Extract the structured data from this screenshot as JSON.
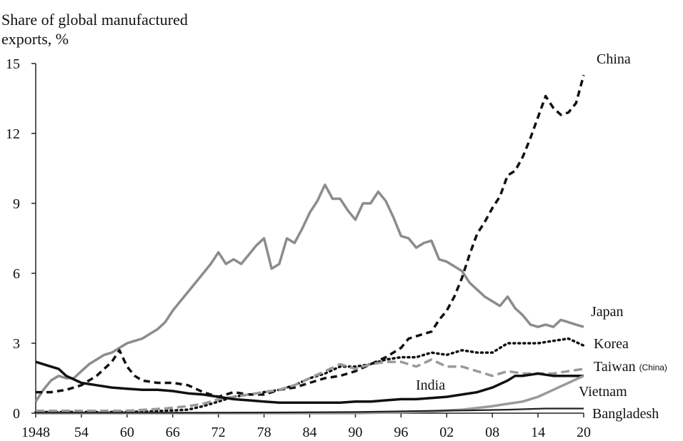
{
  "chart_data": {
    "type": "line",
    "ylabel_line1": "Share of global manufactured",
    "ylabel_line2": "exports, %",
    "xlim": [
      1948,
      2020
    ],
    "ylim": [
      0,
      15
    ],
    "x_ticks": [
      {
        "value": 1948,
        "label": "1948"
      },
      {
        "value": 1954,
        "label": "54"
      },
      {
        "value": 1960,
        "label": "60"
      },
      {
        "value": 1966,
        "label": "66"
      },
      {
        "value": 1972,
        "label": "72"
      },
      {
        "value": 1978,
        "label": "78"
      },
      {
        "value": 1984,
        "label": "84"
      },
      {
        "value": 1990,
        "label": "90"
      },
      {
        "value": 1996,
        "label": "96"
      },
      {
        "value": 2002,
        "label": "02"
      },
      {
        "value": 2008,
        "label": "08"
      },
      {
        "value": 2014,
        "label": "14"
      },
      {
        "value": 2020,
        "label": "20"
      }
    ],
    "y_ticks": [
      {
        "value": 0,
        "label": "0"
      },
      {
        "value": 3,
        "label": "3"
      },
      {
        "value": 6,
        "label": "6"
      },
      {
        "value": 9,
        "label": "9"
      },
      {
        "value": 12,
        "label": "12"
      },
      {
        "value": 15,
        "label": "15"
      }
    ],
    "series": [
      {
        "name": "Japan",
        "label": "Japan",
        "color": "#8c8c8c",
        "dash": "solid",
        "width": 3.5,
        "points": [
          [
            1948,
            0.5
          ],
          [
            1949,
            1.0
          ],
          [
            1950,
            1.4
          ],
          [
            1951,
            1.6
          ],
          [
            1952,
            1.5
          ],
          [
            1953,
            1.5
          ],
          [
            1954,
            1.8
          ],
          [
            1955,
            2.1
          ],
          [
            1956,
            2.3
          ],
          [
            1957,
            2.5
          ],
          [
            1958,
            2.6
          ],
          [
            1959,
            2.8
          ],
          [
            1960,
            3.0
          ],
          [
            1961,
            3.1
          ],
          [
            1962,
            3.2
          ],
          [
            1963,
            3.4
          ],
          [
            1964,
            3.6
          ],
          [
            1965,
            3.9
          ],
          [
            1966,
            4.4
          ],
          [
            1967,
            4.8
          ],
          [
            1968,
            5.2
          ],
          [
            1969,
            5.6
          ],
          [
            1970,
            6.0
          ],
          [
            1971,
            6.4
          ],
          [
            1972,
            6.9
          ],
          [
            1973,
            6.4
          ],
          [
            1974,
            6.6
          ],
          [
            1975,
            6.4
          ],
          [
            1976,
            6.8
          ],
          [
            1977,
            7.2
          ],
          [
            1978,
            7.5
          ],
          [
            1979,
            6.2
          ],
          [
            1980,
            6.4
          ],
          [
            1981,
            7.5
          ],
          [
            1982,
            7.3
          ],
          [
            1983,
            7.9
          ],
          [
            1984,
            8.6
          ],
          [
            1985,
            9.1
          ],
          [
            1986,
            9.8
          ],
          [
            1987,
            9.2
          ],
          [
            1988,
            9.2
          ],
          [
            1989,
            8.7
          ],
          [
            1990,
            8.3
          ],
          [
            1991,
            9.0
          ],
          [
            1992,
            9.0
          ],
          [
            1993,
            9.5
          ],
          [
            1994,
            9.1
          ],
          [
            1995,
            8.4
          ],
          [
            1996,
            7.6
          ],
          [
            1997,
            7.5
          ],
          [
            1998,
            7.1
          ],
          [
            1999,
            7.3
          ],
          [
            2000,
            7.4
          ],
          [
            2001,
            6.6
          ],
          [
            2002,
            6.5
          ],
          [
            2003,
            6.3
          ],
          [
            2004,
            6.1
          ],
          [
            2005,
            5.6
          ],
          [
            2006,
            5.3
          ],
          [
            2007,
            5.0
          ],
          [
            2008,
            4.8
          ],
          [
            2009,
            4.6
          ],
          [
            2010,
            5.0
          ],
          [
            2011,
            4.5
          ],
          [
            2012,
            4.2
          ],
          [
            2013,
            3.8
          ],
          [
            2014,
            3.7
          ],
          [
            2015,
            3.8
          ],
          [
            2016,
            3.7
          ],
          [
            2017,
            4.0
          ],
          [
            2018,
            3.9
          ],
          [
            2019,
            3.8
          ],
          [
            2020,
            3.7
          ]
        ]
      },
      {
        "name": "China",
        "label": "China",
        "color": "#111111",
        "dash": "9,6",
        "width": 3.5,
        "points": [
          [
            1948,
            0.9
          ],
          [
            1950,
            0.9
          ],
          [
            1952,
            1.0
          ],
          [
            1954,
            1.2
          ],
          [
            1956,
            1.6
          ],
          [
            1958,
            2.2
          ],
          [
            1959,
            2.7
          ],
          [
            1960,
            2.0
          ],
          [
            1961,
            1.6
          ],
          [
            1962,
            1.4
          ],
          [
            1964,
            1.3
          ],
          [
            1966,
            1.3
          ],
          [
            1968,
            1.2
          ],
          [
            1970,
            0.9
          ],
          [
            1972,
            0.7
          ],
          [
            1974,
            0.9
          ],
          [
            1976,
            0.8
          ],
          [
            1978,
            0.8
          ],
          [
            1980,
            1.0
          ],
          [
            1982,
            1.1
          ],
          [
            1984,
            1.3
          ],
          [
            1986,
            1.5
          ],
          [
            1988,
            1.6
          ],
          [
            1990,
            1.8
          ],
          [
            1992,
            2.1
          ],
          [
            1994,
            2.4
          ],
          [
            1996,
            2.8
          ],
          [
            1997,
            3.2
          ],
          [
            1998,
            3.3
          ],
          [
            2000,
            3.5
          ],
          [
            2001,
            4.0
          ],
          [
            2002,
            4.4
          ],
          [
            2003,
            5.0
          ],
          [
            2004,
            5.8
          ],
          [
            2005,
            6.8
          ],
          [
            2006,
            7.7
          ],
          [
            2007,
            8.2
          ],
          [
            2008,
            8.8
          ],
          [
            2009,
            9.3
          ],
          [
            2010,
            10.2
          ],
          [
            2011,
            10.4
          ],
          [
            2012,
            11.0
          ],
          [
            2013,
            11.8
          ],
          [
            2014,
            12.7
          ],
          [
            2015,
            13.6
          ],
          [
            2016,
            13.1
          ],
          [
            2017,
            12.8
          ],
          [
            2018,
            12.9
          ],
          [
            2019,
            13.3
          ],
          [
            2020,
            14.5
          ]
        ]
      },
      {
        "name": "Korea",
        "label": "Korea",
        "color": "#111111",
        "dash": "2,5",
        "width": 3.5,
        "points": [
          [
            1948,
            0.05
          ],
          [
            1955,
            0.05
          ],
          [
            1960,
            0.05
          ],
          [
            1965,
            0.1
          ],
          [
            1968,
            0.15
          ],
          [
            1970,
            0.3
          ],
          [
            1972,
            0.5
          ],
          [
            1974,
            0.7
          ],
          [
            1976,
            0.8
          ],
          [
            1978,
            0.9
          ],
          [
            1980,
            1.0
          ],
          [
            1982,
            1.2
          ],
          [
            1984,
            1.5
          ],
          [
            1986,
            1.7
          ],
          [
            1988,
            2.0
          ],
          [
            1990,
            2.0
          ],
          [
            1992,
            2.1
          ],
          [
            1994,
            2.3
          ],
          [
            1996,
            2.4
          ],
          [
            1998,
            2.4
          ],
          [
            2000,
            2.6
          ],
          [
            2002,
            2.5
          ],
          [
            2004,
            2.7
          ],
          [
            2006,
            2.6
          ],
          [
            2008,
            2.6
          ],
          [
            2010,
            3.0
          ],
          [
            2012,
            3.0
          ],
          [
            2014,
            3.0
          ],
          [
            2016,
            3.1
          ],
          [
            2018,
            3.2
          ],
          [
            2020,
            2.9
          ]
        ]
      },
      {
        "name": "Taiwan (China)",
        "label": "Taiwan",
        "label_suffix": "(China)",
        "color": "#999999",
        "dash": "12,6",
        "width": 3.5,
        "points": [
          [
            1948,
            0.1
          ],
          [
            1955,
            0.1
          ],
          [
            1960,
            0.1
          ],
          [
            1965,
            0.2
          ],
          [
            1968,
            0.3
          ],
          [
            1970,
            0.4
          ],
          [
            1972,
            0.6
          ],
          [
            1974,
            0.7
          ],
          [
            1976,
            0.8
          ],
          [
            1978,
            0.9
          ],
          [
            1980,
            1.0
          ],
          [
            1982,
            1.2
          ],
          [
            1984,
            1.5
          ],
          [
            1986,
            1.8
          ],
          [
            1988,
            2.1
          ],
          [
            1990,
            1.9
          ],
          [
            1992,
            2.1
          ],
          [
            1994,
            2.2
          ],
          [
            1996,
            2.2
          ],
          [
            1998,
            2.0
          ],
          [
            2000,
            2.3
          ],
          [
            2002,
            2.0
          ],
          [
            2004,
            2.0
          ],
          [
            2006,
            1.8
          ],
          [
            2008,
            1.6
          ],
          [
            2010,
            1.8
          ],
          [
            2012,
            1.7
          ],
          [
            2014,
            1.7
          ],
          [
            2016,
            1.7
          ],
          [
            2018,
            1.8
          ],
          [
            2020,
            1.9
          ]
        ]
      },
      {
        "name": "India",
        "label": "India",
        "color": "#111111",
        "dash": "solid",
        "width": 3.5,
        "points": [
          [
            1948,
            2.2
          ],
          [
            1950,
            2.0
          ],
          [
            1951,
            1.9
          ],
          [
            1952,
            1.6
          ],
          [
            1954,
            1.3
          ],
          [
            1956,
            1.2
          ],
          [
            1958,
            1.1
          ],
          [
            1960,
            1.05
          ],
          [
            1962,
            1.0
          ],
          [
            1964,
            1.0
          ],
          [
            1966,
            0.95
          ],
          [
            1968,
            0.85
          ],
          [
            1970,
            0.8
          ],
          [
            1972,
            0.7
          ],
          [
            1974,
            0.6
          ],
          [
            1976,
            0.55
          ],
          [
            1978,
            0.5
          ],
          [
            1980,
            0.45
          ],
          [
            1982,
            0.45
          ],
          [
            1984,
            0.45
          ],
          [
            1986,
            0.45
          ],
          [
            1988,
            0.45
          ],
          [
            1990,
            0.5
          ],
          [
            1992,
            0.5
          ],
          [
            1994,
            0.55
          ],
          [
            1996,
            0.6
          ],
          [
            1998,
            0.6
          ],
          [
            2000,
            0.65
          ],
          [
            2002,
            0.7
          ],
          [
            2004,
            0.8
          ],
          [
            2006,
            0.9
          ],
          [
            2008,
            1.1
          ],
          [
            2010,
            1.4
          ],
          [
            2011,
            1.6
          ],
          [
            2012,
            1.6
          ],
          [
            2014,
            1.7
          ],
          [
            2016,
            1.6
          ],
          [
            2018,
            1.6
          ],
          [
            2020,
            1.6
          ]
        ]
      },
      {
        "name": "Vietnam",
        "label": "Vietnam",
        "color": "#9a9a9a",
        "dash": "solid",
        "width": 3.5,
        "points": [
          [
            1948,
            0.0
          ],
          [
            1985,
            0.0
          ],
          [
            1990,
            0.0
          ],
          [
            1995,
            0.03
          ],
          [
            2000,
            0.08
          ],
          [
            2004,
            0.15
          ],
          [
            2008,
            0.3
          ],
          [
            2010,
            0.4
          ],
          [
            2012,
            0.5
          ],
          [
            2014,
            0.7
          ],
          [
            2016,
            1.0
          ],
          [
            2018,
            1.3
          ],
          [
            2020,
            1.6
          ]
        ]
      },
      {
        "name": "Bangladesh",
        "label": "Bangladesh",
        "color": "#222222",
        "dash": "solid",
        "width": 2.2,
        "points": [
          [
            1948,
            0.02
          ],
          [
            1970,
            0.02
          ],
          [
            1980,
            0.03
          ],
          [
            1990,
            0.05
          ],
          [
            2000,
            0.1
          ],
          [
            2005,
            0.12
          ],
          [
            2010,
            0.15
          ],
          [
            2015,
            0.2
          ],
          [
            2020,
            0.2
          ]
        ]
      }
    ]
  }
}
